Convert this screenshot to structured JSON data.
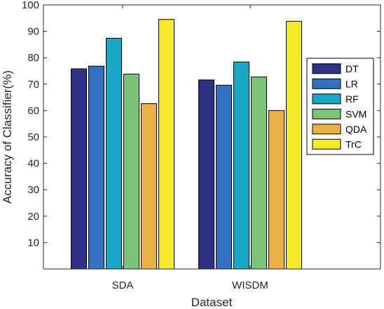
{
  "chart_data": {
    "type": "bar",
    "title": "",
    "xlabel": "Dataset",
    "ylabel": "Accuracy of Classifier(%)",
    "categories": [
      "SDA",
      "WISDM"
    ],
    "ylim": [
      0,
      100
    ],
    "yticks": [
      10,
      20,
      30,
      40,
      50,
      60,
      70,
      80,
      90,
      100
    ],
    "grid": false,
    "legend_position": "right",
    "series": [
      {
        "name": "DT",
        "color": "#2e2f85",
        "values": [
          75.8,
          71.6
        ]
      },
      {
        "name": "LR",
        "color": "#3272c0",
        "values": [
          76.8,
          69.6
        ]
      },
      {
        "name": "RF",
        "color": "#1aa6c6",
        "values": [
          87.4,
          78.4
        ]
      },
      {
        "name": "SVM",
        "color": "#7cc47a",
        "values": [
          73.8,
          72.7
        ]
      },
      {
        "name": "QDA",
        "color": "#ebb044",
        "values": [
          62.6,
          60.0
        ]
      },
      {
        "name": "TrC",
        "color": "#f3ea2a",
        "values": [
          94.5,
          93.8
        ]
      }
    ]
  }
}
